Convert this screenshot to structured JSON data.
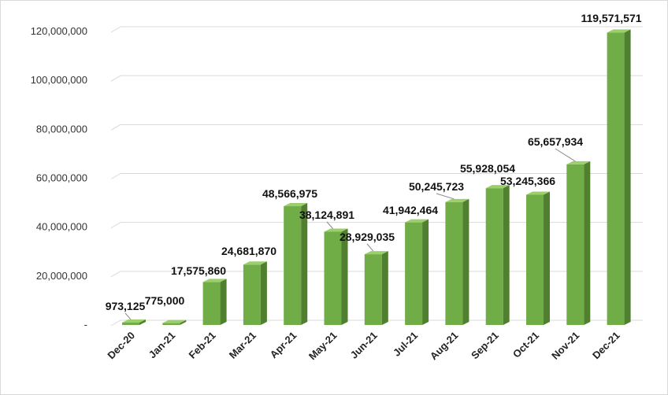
{
  "chart_data": {
    "type": "bar",
    "categories": [
      "Dec-20",
      "Jan-21",
      "Feb-21",
      "Mar-21",
      "Apr-21",
      "May-21",
      "Jun-21",
      "Jul-21",
      "Aug-21",
      "Sep-21",
      "Oct-21",
      "Nov-21",
      "Dec-21"
    ],
    "values": [
      973125,
      775000,
      17575860,
      24681870,
      48566975,
      38124891,
      28929035,
      41942464,
      50245723,
      55928054,
      53245366,
      65657934,
      119571571
    ],
    "data_labels": [
      "973,125",
      "775,000",
      "17,575,860",
      "24,681,870",
      "48,566,975",
      "38,124,891",
      "28,929,035",
      "41,942,464",
      "50,245,723",
      "55,928,054",
      "53,245,366",
      "65,657,934",
      "119,571,571"
    ],
    "yticks": [
      0,
      20000000,
      40000000,
      60000000,
      80000000,
      100000000,
      120000000
    ],
    "ytick_labels": [
      "-",
      "20,000,000",
      "40,000,000",
      "60,000,000",
      "80,000,000",
      "100,000,000",
      "120,000,000"
    ],
    "ylim": [
      0,
      120000000
    ],
    "title": "",
    "xlabel": "",
    "ylabel": "",
    "grid": true,
    "legend": "none",
    "colors": {
      "bar_front": "#70ad47",
      "bar_side": "#4f7f2f",
      "bar_top": "#9bcf6b",
      "grid": "#d9d9d9",
      "leader": "#888888"
    }
  }
}
